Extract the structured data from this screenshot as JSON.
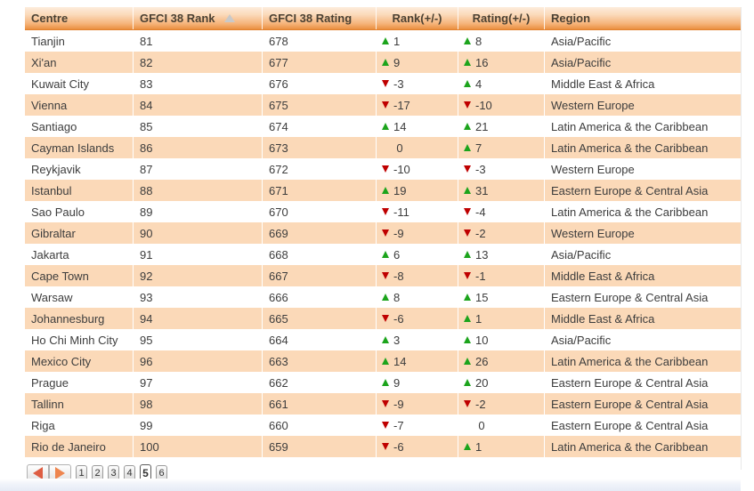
{
  "colors": {
    "header_orange": "#ec9549",
    "stripe_orange": "#fbd9b8",
    "up_green": "#1ca41c",
    "down_red": "#bf0000",
    "sort_arrow_gray": "#c9c9c9",
    "pager_prev_arrow": "#de5d42",
    "pager_next_arrow": "#ee854e"
  },
  "table": {
    "columns": [
      {
        "label": "Centre",
        "align": "left",
        "sorted": false
      },
      {
        "label": "GFCI 38 Rank",
        "align": "left",
        "sorted": true
      },
      {
        "label": "GFCI 38 Rating",
        "align": "left",
        "sorted": false
      },
      {
        "label": "Rank(+/-)",
        "align": "center",
        "sorted": false
      },
      {
        "label": "Rating(+/-)",
        "align": "center",
        "sorted": false
      },
      {
        "label": "Region",
        "align": "left",
        "sorted": false
      }
    ],
    "sort_indicator": "ascending",
    "rows": [
      {
        "centre": "Tianjin",
        "rank": "81",
        "rating": "678",
        "rank_change": 1,
        "rating_change": 8,
        "region": "Asia/Pacific"
      },
      {
        "centre": "Xi'an",
        "rank": "82",
        "rating": "677",
        "rank_change": 9,
        "rating_change": 16,
        "region": "Asia/Pacific"
      },
      {
        "centre": "Kuwait City",
        "rank": "83",
        "rating": "676",
        "rank_change": -3,
        "rating_change": 4,
        "region": "Middle East & Africa"
      },
      {
        "centre": "Vienna",
        "rank": "84",
        "rating": "675",
        "rank_change": -17,
        "rating_change": -10,
        "region": "Western Europe"
      },
      {
        "centre": "Santiago",
        "rank": "85",
        "rating": "674",
        "rank_change": 14,
        "rating_change": 21,
        "region": "Latin America & the Caribbean"
      },
      {
        "centre": "Cayman Islands",
        "rank": "86",
        "rating": "673",
        "rank_change": 0,
        "rating_change": 7,
        "region": "Latin America & the Caribbean"
      },
      {
        "centre": "Reykjavik",
        "rank": "87",
        "rating": "672",
        "rank_change": -10,
        "rating_change": -3,
        "region": "Western Europe"
      },
      {
        "centre": "Istanbul",
        "rank": "88",
        "rating": "671",
        "rank_change": 19,
        "rating_change": 31,
        "region": "Eastern Europe & Central Asia"
      },
      {
        "centre": "Sao Paulo",
        "rank": "89",
        "rating": "670",
        "rank_change": -11,
        "rating_change": -4,
        "region": "Latin America & the Caribbean"
      },
      {
        "centre": "Gibraltar",
        "rank": "90",
        "rating": "669",
        "rank_change": -9,
        "rating_change": -2,
        "region": "Western Europe"
      },
      {
        "centre": "Jakarta",
        "rank": "91",
        "rating": "668",
        "rank_change": 6,
        "rating_change": 13,
        "region": "Asia/Pacific"
      },
      {
        "centre": "Cape Town",
        "rank": "92",
        "rating": "667",
        "rank_change": -8,
        "rating_change": -1,
        "region": "Middle East & Africa"
      },
      {
        "centre": "Warsaw",
        "rank": "93",
        "rating": "666",
        "rank_change": 8,
        "rating_change": 15,
        "region": "Eastern Europe & Central Asia"
      },
      {
        "centre": "Johannesburg",
        "rank": "94",
        "rating": "665",
        "rank_change": -6,
        "rating_change": 1,
        "region": "Middle East & Africa"
      },
      {
        "centre": "Ho Chi Minh City",
        "rank": "95",
        "rating": "664",
        "rank_change": 3,
        "rating_change": 10,
        "region": "Asia/Pacific"
      },
      {
        "centre": "Mexico City",
        "rank": "96",
        "rating": "663",
        "rank_change": 14,
        "rating_change": 26,
        "region": "Latin America & the Caribbean"
      },
      {
        "centre": "Prague",
        "rank": "97",
        "rating": "662",
        "rank_change": 9,
        "rating_change": 20,
        "region": "Eastern Europe & Central Asia"
      },
      {
        "centre": "Tallinn",
        "rank": "98",
        "rating": "661",
        "rank_change": -9,
        "rating_change": -2,
        "region": "Eastern Europe & Central Asia"
      },
      {
        "centre": "Riga",
        "rank": "99",
        "rating": "660",
        "rank_change": -7,
        "rating_change": 0,
        "region": "Eastern Europe & Central Asia"
      },
      {
        "centre": "Rio de Janeiro",
        "rank": "100",
        "rating": "659",
        "rank_change": -6,
        "rating_change": 1,
        "region": "Latin America & the Caribbean"
      }
    ]
  },
  "pagination": {
    "pages": [
      "1",
      "2",
      "3",
      "4",
      "5",
      "6"
    ],
    "current_page": "5"
  }
}
